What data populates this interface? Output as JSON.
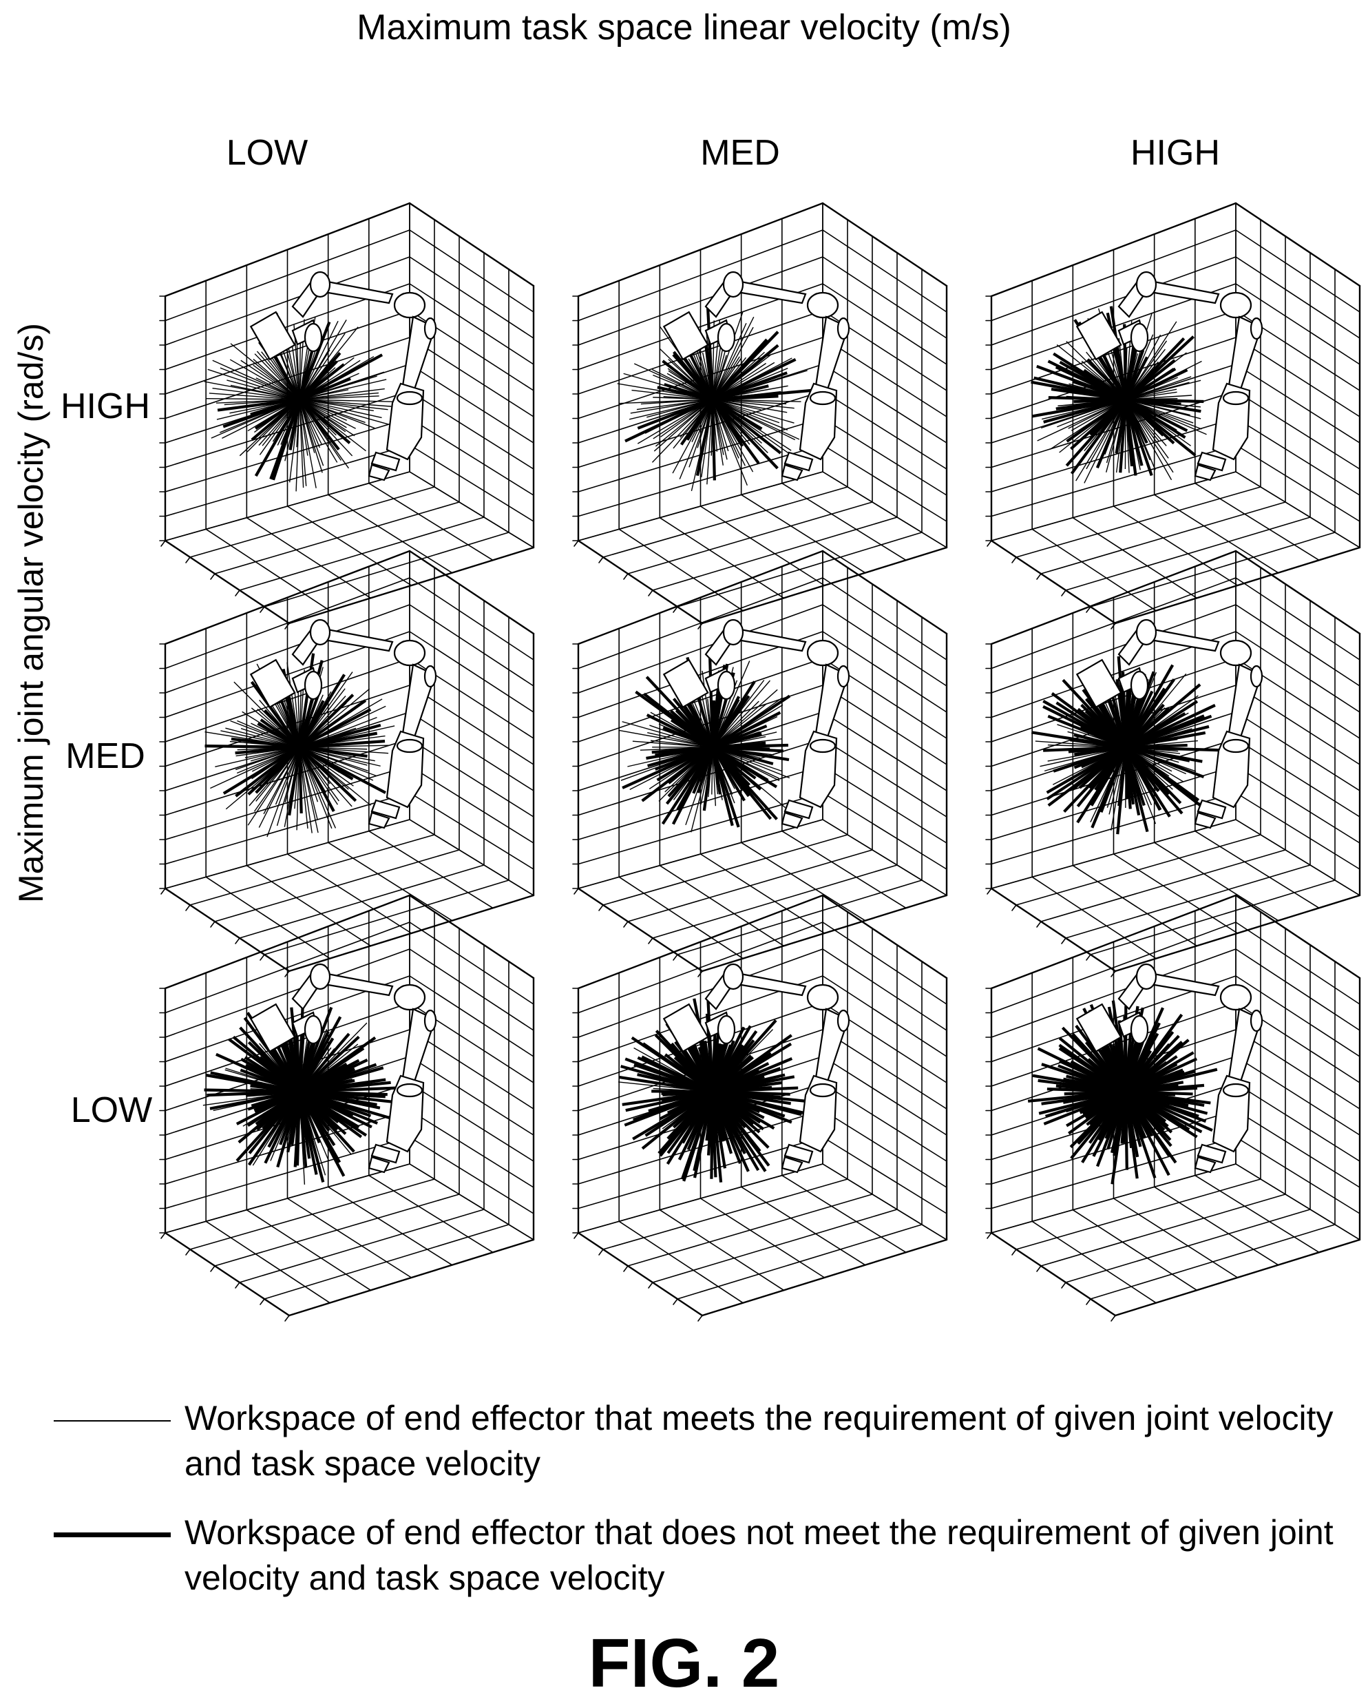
{
  "figure": {
    "top_title": "Maximum task space linear velocity (m/s)",
    "y_title": "Maximum joint angular velocity (rad/s)",
    "columns": [
      "LOW",
      "MED",
      "HIGH"
    ],
    "rows": [
      "HIGH",
      "MED",
      "LOW"
    ],
    "panels": [
      {
        "row": "HIGH",
        "col": "LOW",
        "not_meeting_fraction": 0.15
      },
      {
        "row": "HIGH",
        "col": "MED",
        "not_meeting_fraction": 0.3
      },
      {
        "row": "HIGH",
        "col": "HIGH",
        "not_meeting_fraction": 0.45
      },
      {
        "row": "MED",
        "col": "LOW",
        "not_meeting_fraction": 0.3
      },
      {
        "row": "MED",
        "col": "MED",
        "not_meeting_fraction": 0.55
      },
      {
        "row": "MED",
        "col": "HIGH",
        "not_meeting_fraction": 0.75
      },
      {
        "row": "LOW",
        "col": "LOW",
        "not_meeting_fraction": 0.85
      },
      {
        "row": "LOW",
        "col": "MED",
        "not_meeting_fraction": 0.95
      },
      {
        "row": "LOW",
        "col": "HIGH",
        "not_meeting_fraction": 1.0
      }
    ],
    "legend": [
      {
        "style": "thin",
        "text": "Workspace of end effector that meets the requirement of given joint velocity and task space velocity"
      },
      {
        "style": "thick",
        "text": "Workspace of end effector that does not meet the requirement of given joint velocity and task space velocity"
      }
    ],
    "fig_label": "FIG. 2"
  }
}
